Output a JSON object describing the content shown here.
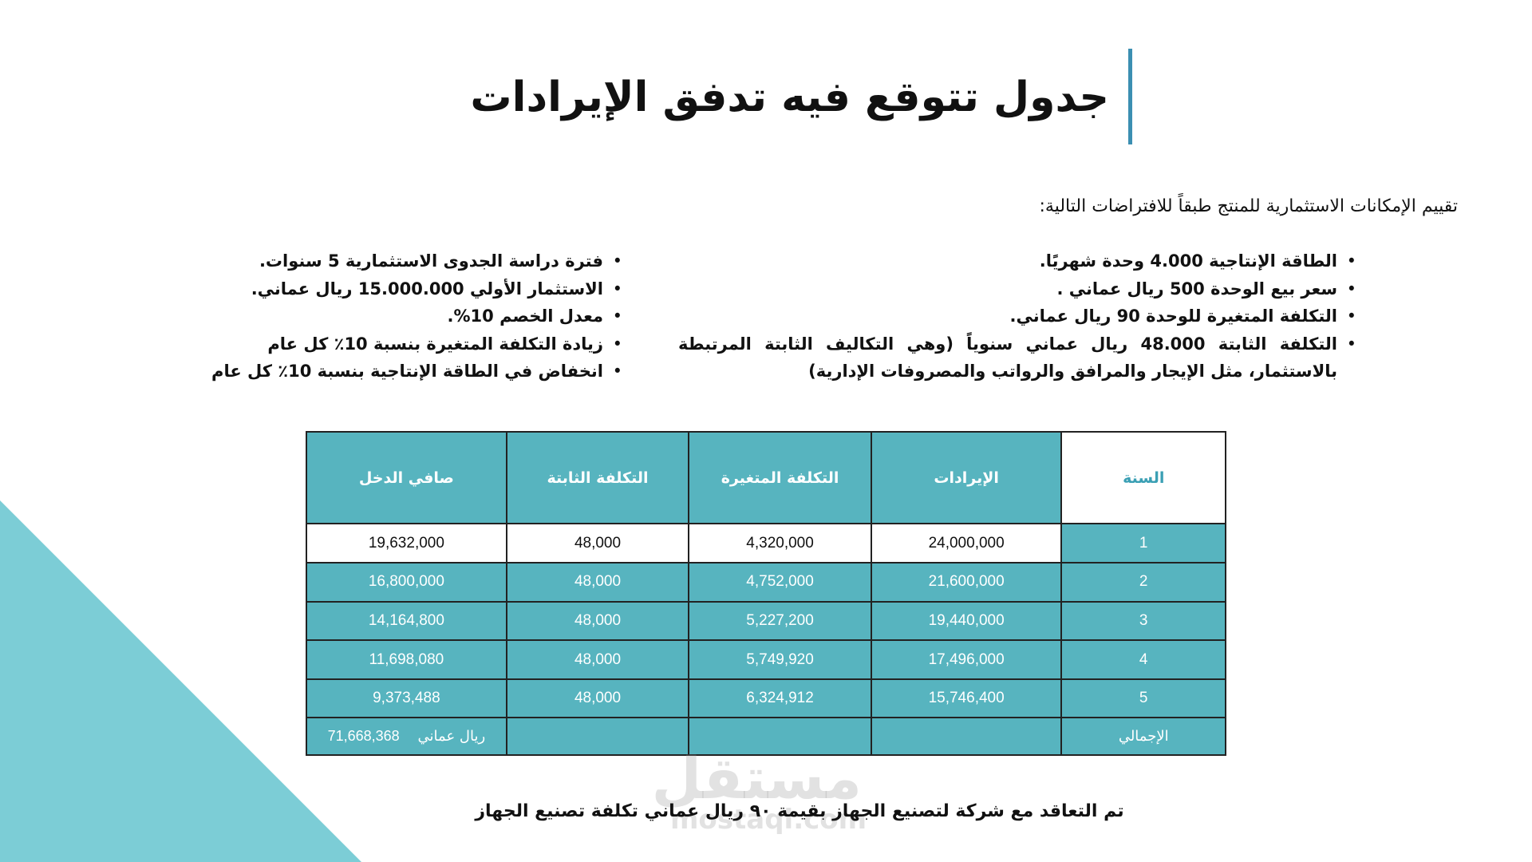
{
  "title": "جدول تتوقع فيه تدفق الإيرادات",
  "intro": "تقييم الإمكانات الاستثمارية للمنتج طبقاً للافتراضات التالية:",
  "assumptions_right": [
    "الطاقة الإنتاجية 4.000 وحدة شهريًا.",
    "سعر بيع الوحدة 500 ريال عماني .",
    "التكلفة المتغيرة للوحدة 90 ريال عماني.",
    "التكلفة الثابتة 48.000 ريال عماني سنوياً (وهي التكاليف الثابتة المرتبطة بالاستثمار، مثل الإيجار والمرافق والرواتب والمصروفات الإدارية)"
  ],
  "assumptions_left": [
    "فترة دراسة الجدوى الاستثمارية 5 سنوات.",
    "الاستثمار الأولي 15.000.000 ريال عماني.",
    "معدل الخصم 10%.",
    "زيادة التكلفة المتغيرة بنسبة 10٪ كل عام",
    "انخفاض في الطاقة الإنتاجية بنسبة 10٪ كل عام"
  ],
  "table": {
    "headers": [
      "السنة",
      "الإيرادات",
      "التكلفة المتغيرة",
      "التكلفة الثابتة",
      "صافي الدخل"
    ],
    "rows": [
      [
        "1",
        "24,000,000",
        "4,320,000",
        "48,000",
        "19,632,000"
      ],
      [
        "2",
        "21,600,000",
        "4,752,000",
        "48,000",
        "16,800,000"
      ],
      [
        "3",
        "19,440,000",
        "5,227,200",
        "48,000",
        "14,164,800"
      ],
      [
        "4",
        "17,496,000",
        "5,749,920",
        "48,000",
        "11,698,080"
      ],
      [
        "5",
        "15,746,400",
        "6,324,912",
        "48,000",
        "9,373,488"
      ]
    ],
    "total_label": "الإجمالي",
    "total_value": "71,668,368",
    "total_unit": "ريال عماني"
  },
  "footer": "تم التعاقد مع شركة لتصنيع الجهاز بقيمة ٩٠ ريال عماني تكلفة تصنيع الجهاز",
  "watermark": {
    "arabic": "مستقل",
    "latin": "mostaql.com"
  },
  "colors": {
    "teal": "#57b4bf",
    "triangle": "#7ccdd6",
    "accent_bar": "#3b8fb2"
  }
}
